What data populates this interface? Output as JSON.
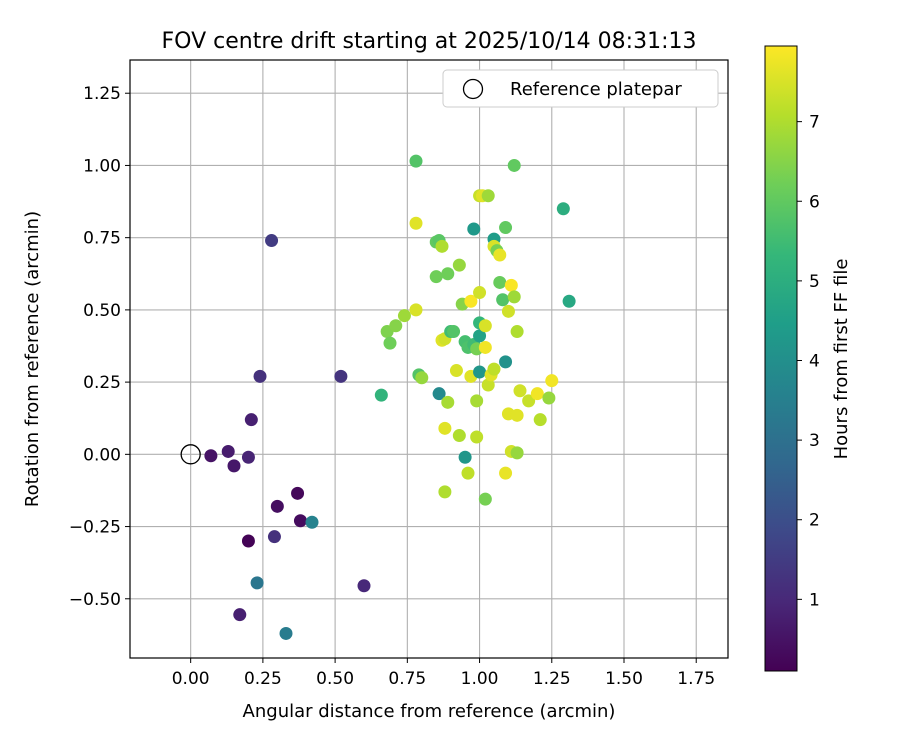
{
  "chart_data": {
    "type": "scatter",
    "title": "FOV centre drift starting at 2025/10/14 08:31:13",
    "xlabel": "Angular distance from reference (arcmin)",
    "ylabel": "Rotation from reference (arcmin)",
    "xlim": [
      -0.21,
      1.86
    ],
    "ylim": [
      -0.705,
      1.365
    ],
    "xticks": [
      0.0,
      0.25,
      0.5,
      0.75,
      1.0,
      1.25,
      1.5,
      1.75
    ],
    "xtick_labels": [
      "0.00",
      "0.25",
      "0.50",
      "0.75",
      "1.00",
      "1.25",
      "1.50",
      "1.75"
    ],
    "yticks": [
      -0.5,
      -0.25,
      0.0,
      0.25,
      0.5,
      0.75,
      1.0,
      1.25
    ],
    "ytick_labels": [
      "−0.50",
      "−0.25",
      "0.00",
      "0.25",
      "0.50",
      "0.75",
      "1.00",
      "1.25"
    ],
    "grid": true,
    "legend": {
      "placement": "upper right",
      "label": "Reference platepar",
      "marker": "open circle"
    },
    "reference_point": {
      "x": 0.0,
      "y": 0.0
    },
    "colorbar": {
      "label": "Hours from first FF file",
      "range": [
        0.1,
        7.95
      ],
      "ticks": [
        1,
        2,
        3,
        4,
        5,
        6,
        7
      ],
      "tick_labels": [
        "1",
        "2",
        "3",
        "4",
        "5",
        "6",
        "7"
      ],
      "colormap": "viridis",
      "colormap_stops": [
        "#440154",
        "#482878",
        "#3e4989",
        "#31688e",
        "#26828e",
        "#1f9e89",
        "#35b779",
        "#6ece58",
        "#b5de2b",
        "#fde725"
      ]
    },
    "points": [
      {
        "x": 0.07,
        "y": -0.005,
        "c": 0.5
      },
      {
        "x": 0.13,
        "y": 0.01,
        "c": 0.7
      },
      {
        "x": 0.15,
        "y": -0.04,
        "c": 0.6
      },
      {
        "x": 0.2,
        "y": -0.01,
        "c": 0.9
      },
      {
        "x": 0.21,
        "y": 0.12,
        "c": 0.8
      },
      {
        "x": 0.24,
        "y": 0.27,
        "c": 1.2
      },
      {
        "x": 0.28,
        "y": 0.74,
        "c": 1.5
      },
      {
        "x": 0.52,
        "y": 0.27,
        "c": 1.3
      },
      {
        "x": 0.2,
        "y": -0.3,
        "c": 0.15
      },
      {
        "x": 0.3,
        "y": -0.18,
        "c": 0.4
      },
      {
        "x": 0.37,
        "y": -0.135,
        "c": 0.25
      },
      {
        "x": 0.38,
        "y": -0.23,
        "c": 0.35
      },
      {
        "x": 0.29,
        "y": -0.285,
        "c": 1.2
      },
      {
        "x": 0.42,
        "y": -0.235,
        "c": 3.6
      },
      {
        "x": 0.23,
        "y": -0.445,
        "c": 3.2
      },
      {
        "x": 0.17,
        "y": -0.555,
        "c": 0.8
      },
      {
        "x": 0.33,
        "y": -0.62,
        "c": 3.4
      },
      {
        "x": 0.6,
        "y": -0.455,
        "c": 1.0
      },
      {
        "x": 0.66,
        "y": 0.205,
        "c": 5.2
      },
      {
        "x": 0.68,
        "y": 0.425,
        "c": 6.4
      },
      {
        "x": 0.69,
        "y": 0.385,
        "c": 6.2
      },
      {
        "x": 0.71,
        "y": 0.445,
        "c": 6.5
      },
      {
        "x": 0.74,
        "y": 0.48,
        "c": 6.8
      },
      {
        "x": 0.78,
        "y": 1.015,
        "c": 5.8
      },
      {
        "x": 0.78,
        "y": 0.8,
        "c": 7.6
      },
      {
        "x": 0.78,
        "y": 0.5,
        "c": 7.5
      },
      {
        "x": 0.79,
        "y": 0.275,
        "c": 5.8
      },
      {
        "x": 0.8,
        "y": 0.265,
        "c": 6.7
      },
      {
        "x": 0.85,
        "y": 0.735,
        "c": 6.0
      },
      {
        "x": 0.85,
        "y": 0.615,
        "c": 6.2
      },
      {
        "x": 0.86,
        "y": 0.21,
        "c": 3.8
      },
      {
        "x": 0.86,
        "y": 0.74,
        "c": 5.9
      },
      {
        "x": 0.87,
        "y": 0.72,
        "c": 7.0
      },
      {
        "x": 0.87,
        "y": 0.395,
        "c": 7.6
      },
      {
        "x": 0.88,
        "y": 0.4,
        "c": 7.4
      },
      {
        "x": 0.88,
        "y": 0.09,
        "c": 7.6
      },
      {
        "x": 0.88,
        "y": -0.13,
        "c": 7.0
      },
      {
        "x": 0.89,
        "y": 0.18,
        "c": 6.9
      },
      {
        "x": 0.89,
        "y": 0.625,
        "c": 6.2
      },
      {
        "x": 0.9,
        "y": 0.425,
        "c": 5.5
      },
      {
        "x": 0.91,
        "y": 0.425,
        "c": 5.8
      },
      {
        "x": 0.92,
        "y": 0.29,
        "c": 7.5
      },
      {
        "x": 0.93,
        "y": 0.065,
        "c": 7.0
      },
      {
        "x": 0.93,
        "y": 0.655,
        "c": 6.7
      },
      {
        "x": 0.94,
        "y": 0.52,
        "c": 6.5
      },
      {
        "x": 0.95,
        "y": -0.01,
        "c": 4.2
      },
      {
        "x": 0.95,
        "y": 0.39,
        "c": 5.6
      },
      {
        "x": 0.96,
        "y": 0.37,
        "c": 5.7
      },
      {
        "x": 0.96,
        "y": -0.065,
        "c": 7.2
      },
      {
        "x": 0.97,
        "y": 0.27,
        "c": 7.6
      },
      {
        "x": 0.97,
        "y": 0.53,
        "c": 7.9
      },
      {
        "x": 0.98,
        "y": 0.78,
        "c": 4.3
      },
      {
        "x": 0.98,
        "y": 0.38,
        "c": 5.5
      },
      {
        "x": 0.99,
        "y": 0.185,
        "c": 6.9
      },
      {
        "x": 0.99,
        "y": 0.06,
        "c": 7.2
      },
      {
        "x": 0.99,
        "y": 0.365,
        "c": 6.3
      },
      {
        "x": 1.0,
        "y": 0.285,
        "c": 4.2
      },
      {
        "x": 1.0,
        "y": 0.41,
        "c": 4.6
      },
      {
        "x": 1.0,
        "y": 0.455,
        "c": 5.3
      },
      {
        "x": 1.0,
        "y": 0.56,
        "c": 7.4
      },
      {
        "x": 1.0,
        "y": 0.895,
        "c": 7.3
      },
      {
        "x": 1.01,
        "y": 0.895,
        "c": 7.6
      },
      {
        "x": 1.02,
        "y": 0.37,
        "c": 7.8
      },
      {
        "x": 1.02,
        "y": -0.155,
        "c": 6.3
      },
      {
        "x": 1.02,
        "y": 0.445,
        "c": 7.5
      },
      {
        "x": 1.03,
        "y": 0.24,
        "c": 7.3
      },
      {
        "x": 1.03,
        "y": 0.895,
        "c": 6.8
      },
      {
        "x": 1.04,
        "y": 0.275,
        "c": 7.6
      },
      {
        "x": 1.05,
        "y": 0.295,
        "c": 7.2
      },
      {
        "x": 1.05,
        "y": 0.745,
        "c": 4.4
      },
      {
        "x": 1.05,
        "y": 0.72,
        "c": 7.5
      },
      {
        "x": 1.06,
        "y": 0.705,
        "c": 6.3
      },
      {
        "x": 1.07,
        "y": 0.69,
        "c": 7.7
      },
      {
        "x": 1.07,
        "y": 0.595,
        "c": 6.1
      },
      {
        "x": 1.08,
        "y": 0.535,
        "c": 5.8
      },
      {
        "x": 1.09,
        "y": 0.785,
        "c": 6.0
      },
      {
        "x": 1.09,
        "y": -0.065,
        "c": 7.7
      },
      {
        "x": 1.09,
        "y": 0.32,
        "c": 4.1
      },
      {
        "x": 1.1,
        "y": 0.495,
        "c": 7.4
      },
      {
        "x": 1.1,
        "y": 0.14,
        "c": 7.6
      },
      {
        "x": 1.11,
        "y": 0.585,
        "c": 7.9
      },
      {
        "x": 1.11,
        "y": 0.01,
        "c": 7.4
      },
      {
        "x": 1.12,
        "y": 1.0,
        "c": 6.0
      },
      {
        "x": 1.12,
        "y": 0.545,
        "c": 6.8
      },
      {
        "x": 1.13,
        "y": 0.135,
        "c": 7.6
      },
      {
        "x": 1.13,
        "y": 0.005,
        "c": 6.7
      },
      {
        "x": 1.13,
        "y": 0.425,
        "c": 7.0
      },
      {
        "x": 1.14,
        "y": 0.22,
        "c": 7.4
      },
      {
        "x": 1.17,
        "y": 0.185,
        "c": 7.3
      },
      {
        "x": 1.2,
        "y": 0.21,
        "c": 7.8
      },
      {
        "x": 1.21,
        "y": 0.12,
        "c": 7.1
      },
      {
        "x": 1.24,
        "y": 0.195,
        "c": 6.7
      },
      {
        "x": 1.25,
        "y": 0.255,
        "c": 7.8
      },
      {
        "x": 1.29,
        "y": 0.85,
        "c": 5.0
      },
      {
        "x": 1.31,
        "y": 0.53,
        "c": 4.8
      }
    ]
  }
}
